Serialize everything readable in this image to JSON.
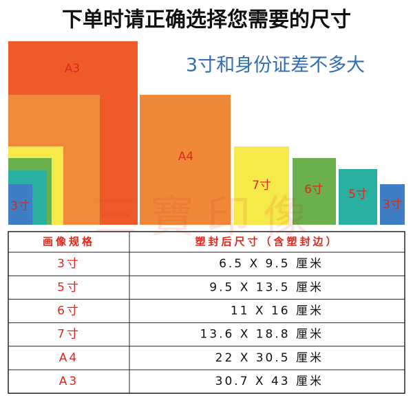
{
  "header": {
    "title": "下单时请正确选择您需要的尺寸",
    "subtitle": "3寸和身份证差不多大"
  },
  "watermark": "三寶印像",
  "sizes": {
    "nested": [
      "A3",
      "3寸"
    ],
    "separate": [
      "A4",
      "7寸",
      "6寸",
      "5寸",
      "3寸"
    ]
  },
  "table": {
    "header": [
      "画像规格",
      "塑封后尺寸（含塑封边）"
    ],
    "rows": [
      [
        "3寸",
        "6.5 X 9.5 厘米"
      ],
      [
        "5寸",
        "9.5 X 13.5 厘米"
      ],
      [
        "6寸",
        "11 X 16 厘米"
      ],
      [
        "7寸",
        "13.6 X 18.8 厘米"
      ],
      [
        "A4",
        "22 X 30.5 厘米"
      ],
      [
        "A3",
        "30.7 X 43 厘米"
      ]
    ]
  }
}
